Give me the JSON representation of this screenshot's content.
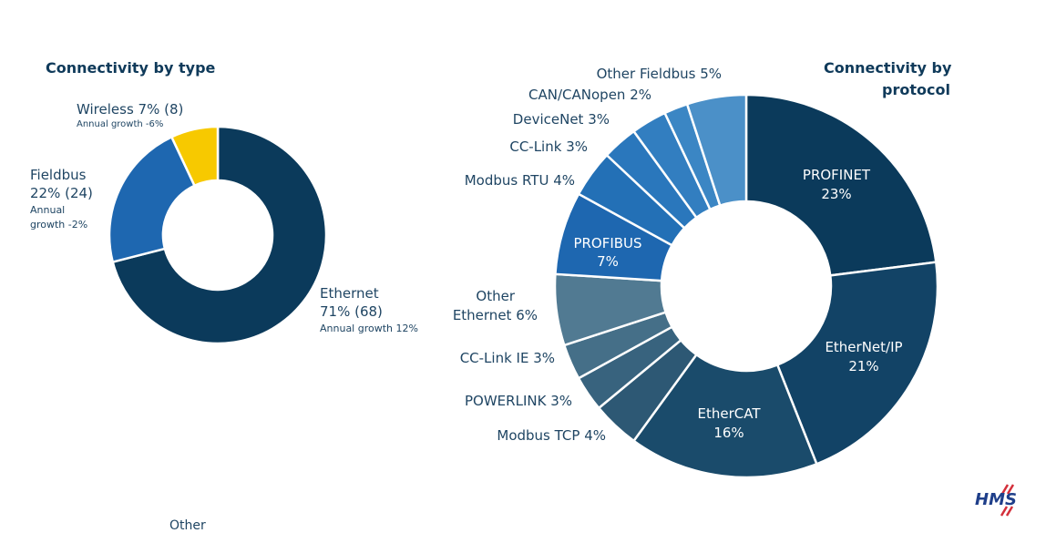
{
  "chart_data": [
    {
      "type": "pie",
      "title": "Connectivity by type",
      "slices": [
        {
          "label": "Ethernet",
          "detail": "71% (68)",
          "note": "Annual growth 12%",
          "value": 71,
          "color": "#0b3a5b"
        },
        {
          "label": "Fieldbus",
          "detail": "22% (24)",
          "note": "Annual growth -2%",
          "value": 22,
          "color": "#1e67b0"
        },
        {
          "label": "Wireless",
          "detail": "7% (8)",
          "note": "Annual growth -6%",
          "value": 7,
          "color": "#f7c900"
        }
      ]
    },
    {
      "type": "pie",
      "title": "Connectivity by protocol",
      "slices": [
        {
          "label": "PROFINET",
          "value": 23,
          "color": "#0b3a5b"
        },
        {
          "label": "EtherNet/IP",
          "value": 21,
          "color": "#124366"
        },
        {
          "label": "EtherCAT",
          "value": 16,
          "color": "#1a4b6b"
        },
        {
          "label": "Modbus TCP",
          "value": 4,
          "color": "#2d5874"
        },
        {
          "label": "POWERLINK",
          "value": 3,
          "color": "#38637e"
        },
        {
          "label": "CC-Link IE",
          "value": 3,
          "color": "#456f88"
        },
        {
          "label": "Other Ethernet",
          "value": 6,
          "color": "#517a92"
        },
        {
          "label": "PROFIBUS",
          "value": 7,
          "color": "#1e67b0"
        },
        {
          "label": "Modbus RTU",
          "value": 4,
          "color": "#2370b6"
        },
        {
          "label": "CC-Link",
          "value": 3,
          "color": "#2a77bc"
        },
        {
          "label": "DeviceNet",
          "value": 3,
          "color": "#327ec0"
        },
        {
          "label": "CAN/CANopen",
          "value": 2,
          "color": "#3b86c4"
        },
        {
          "label": "Other Fieldbus",
          "value": 5,
          "color": "#4b90c8"
        }
      ]
    }
  ],
  "labels": {
    "type": {
      "wireless_main": "Wireless 7% (8)",
      "wireless_note": "Annual growth -6%",
      "fieldbus_l1": "Fieldbus",
      "fieldbus_l2": "22% (24)",
      "fieldbus_l3": "Annual",
      "fieldbus_l4": "growth -2%",
      "ethernet_l1": "Ethernet",
      "ethernet_l2": "71% (68)",
      "ethernet_l3": "Annual growth 12%"
    },
    "protocol": {
      "other_fieldbus": "Other Fieldbus 5%",
      "can": "CAN/CANopen 2%",
      "devicenet": "DeviceNet 3%",
      "cclink": "CC-Link 3%",
      "modbus_rtu": "Modbus RTU 4%",
      "profibus_name": "PROFIBUS",
      "profibus_pct": "7%",
      "other_eth_1": "Other",
      "other_eth_2": "Ethernet 6%",
      "cclink_ie": "CC-Link IE 3%",
      "powerlink": "POWERLINK 3%",
      "modbus_tcp": "Modbus TCP 4%",
      "ethercat_name": "EtherCAT",
      "ethercat_pct": "16%",
      "ethernetip_name": "EtherNet/IP",
      "ethernetip_pct": "21%",
      "profinet_name": "PROFINET",
      "profinet_pct": "23%"
    }
  },
  "titles": {
    "type": "Connectivity by type",
    "protocol_l1": "Connectivity by",
    "protocol_l2": "protocol"
  },
  "logo": {
    "text": "HMS",
    "color": "#1f3f8a",
    "accent": "#d32f3a"
  },
  "footer_cut_text": "Other"
}
